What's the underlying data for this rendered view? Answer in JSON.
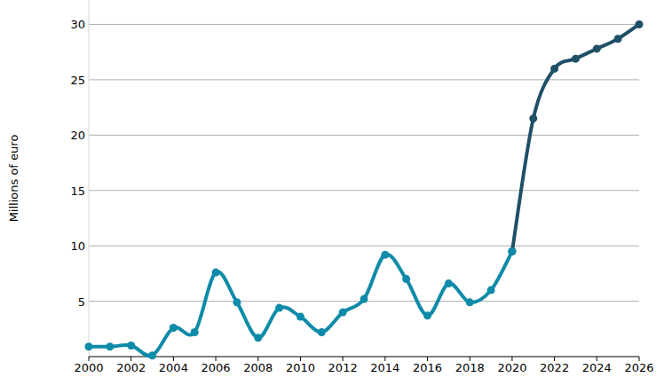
{
  "chart_data": {
    "type": "line",
    "y_label": "Millions of euro",
    "x": [
      2000,
      2001,
      2002,
      2003,
      2004,
      2005,
      2006,
      2007,
      2008,
      2009,
      2010,
      2011,
      2012,
      2013,
      2014,
      2015,
      2016,
      2017,
      2018,
      2019,
      2020,
      2021,
      2022,
      2023,
      2024,
      2025,
      2026
    ],
    "series": [
      {
        "color": "#0e8ba8",
        "marker": "circle",
        "values": [
          0.9,
          0.9,
          1.0,
          0.1,
          2.6,
          2.2,
          7.6,
          4.9,
          1.7,
          4.4,
          3.6,
          2.2,
          4.0,
          5.2,
          9.2,
          7.0,
          3.7,
          6.6,
          4.9,
          6.0,
          9.5,
          null,
          null,
          null,
          null,
          null,
          null
        ]
      },
      {
        "color": "#1f5068",
        "marker": "circle",
        "values": [
          null,
          null,
          null,
          null,
          null,
          null,
          null,
          null,
          null,
          null,
          null,
          null,
          null,
          null,
          null,
          null,
          null,
          null,
          null,
          null,
          9.5,
          21.5,
          26.0,
          26.9,
          27.8,
          28.7,
          30.0
        ]
      }
    ],
    "xlim": [
      2000,
      2026
    ],
    "xticks": [
      2000,
      2002,
      2004,
      2006,
      2008,
      2010,
      2012,
      2014,
      2016,
      2018,
      2020,
      2022,
      2024,
      2026
    ],
    "ylim": [
      0,
      32.2
    ],
    "yticks": [
      5,
      10,
      15,
      20,
      25,
      30
    ],
    "grid": true
  }
}
